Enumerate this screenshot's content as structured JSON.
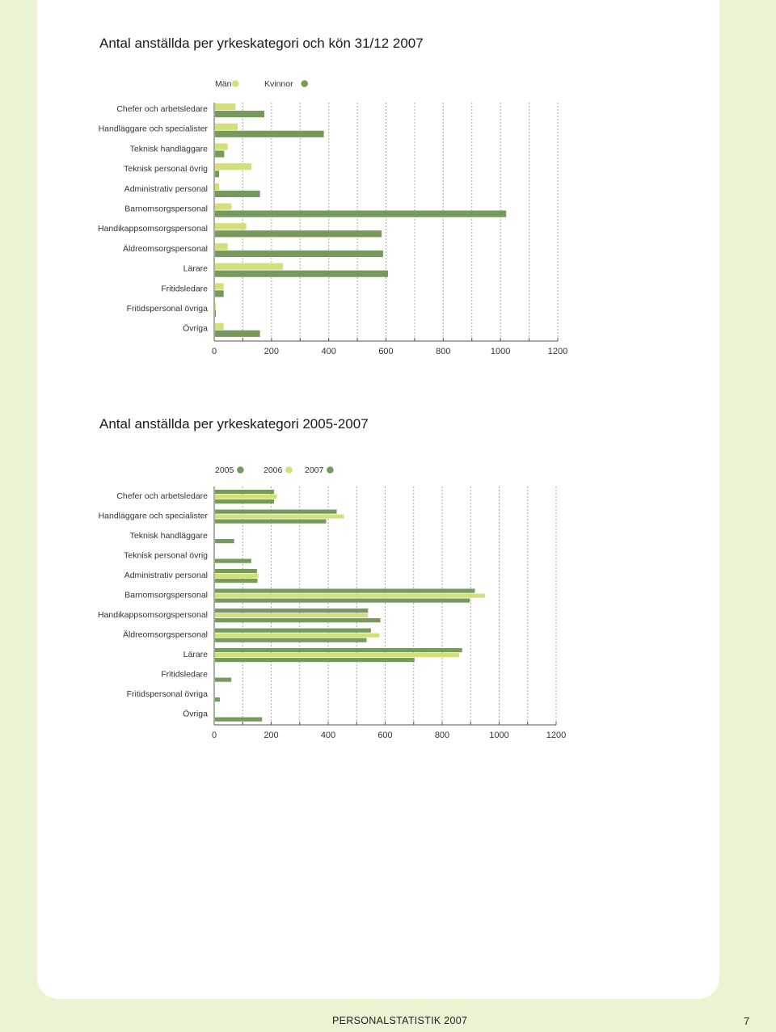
{
  "page": {
    "footer_text": "PERSONALSTATISTIK 2007",
    "page_number": "7"
  },
  "colors": {
    "light": "#d2e07a",
    "dark": "#769a5c",
    "background": "#e9f5d2",
    "grid": "#aaaaaa"
  },
  "chart_data": [
    {
      "type": "bar",
      "orientation": "horizontal",
      "title": "Antal anställda per yrkeskategori och kön 31/12 2007",
      "categories": [
        "Chefer och arbetsledare",
        "Handläggare och specialister",
        "Teknisk handläggare",
        "Teknisk personal övrig",
        "Administrativ personal",
        "Barnomsorgspersonal",
        "Handikappsomsorgspersonal",
        "Äldreomsorgspersonal",
        "Lärare",
        "Fritidsledare",
        "Fritidspersonal övriga",
        "Övriga"
      ],
      "series": [
        {
          "name": "Män",
          "color": "#d2e07a",
          "values": [
            75,
            82,
            47,
            130,
            17,
            60,
            112,
            47,
            240,
            33,
            5,
            33
          ]
        },
        {
          "name": "Kvinnor",
          "color": "#769a5c",
          "values": [
            175,
            383,
            35,
            17,
            160,
            1020,
            585,
            590,
            607,
            33,
            5,
            160
          ]
        }
      ],
      "xlim": [
        0,
        1200
      ],
      "xticks": [
        "0",
        "200",
        "400",
        "600",
        "800",
        "1000",
        "1200"
      ],
      "grid": true,
      "legend": "top"
    },
    {
      "type": "bar",
      "orientation": "horizontal",
      "title": "Antal anställda per yrkeskategori 2005-2007",
      "categories": [
        "Chefer och arbetsledare",
        "Handläggare och specialister",
        "Teknisk handläggare",
        "Teknisk personal övrig",
        "Administrativ personal",
        "Barnomsorgspersonal",
        "Handikappsomsorgspersonal",
        "Äldreomsorgspersonal",
        "Lärare",
        "Fritidsledare",
        "Fritidspersonal övriga",
        "Övriga"
      ],
      "series": [
        {
          "name": "2005",
          "color": "#769a5c",
          "values": [
            210,
            430,
            0,
            0,
            150,
            915,
            540,
            550,
            870,
            0,
            0,
            0
          ]
        },
        {
          "name": "2006",
          "color": "#d2e07a",
          "values": [
            220,
            455,
            0,
            0,
            155,
            950,
            540,
            580,
            860,
            0,
            0,
            0
          ]
        },
        {
          "name": "2007",
          "color": "#769a5c",
          "values": [
            210,
            393,
            70,
            130,
            152,
            897,
            583,
            535,
            703,
            60,
            20,
            168
          ]
        }
      ],
      "xlim": [
        0,
        1200
      ],
      "xticks": [
        "0",
        "200",
        "400",
        "600",
        "800",
        "1000",
        "1200"
      ],
      "grid": true,
      "legend": "top"
    }
  ]
}
